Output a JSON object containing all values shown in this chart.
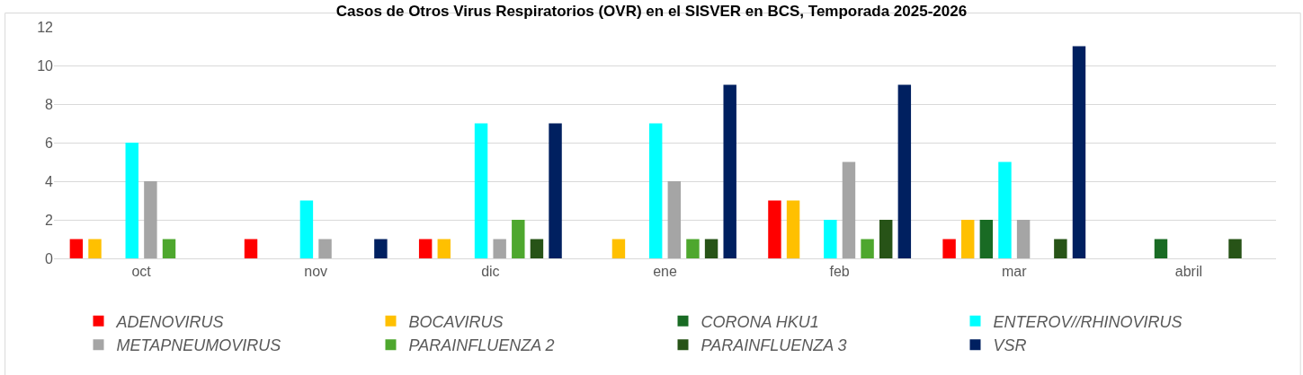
{
  "chart_data": {
    "type": "bar",
    "title": "Casos de Otros Virus Respiratorios (OVR) en el SISVER en BCS, Temporada 2025-2026",
    "categories": [
      "oct",
      "nov",
      "dic",
      "ene",
      "feb",
      "mar",
      "abril"
    ],
    "series": [
      {
        "name": "ADENOVIRUS",
        "color": "#ff0000",
        "values": [
          1,
          1,
          1,
          null,
          3,
          1,
          null
        ]
      },
      {
        "name": "BOCAVIRUS",
        "color": "#ffc000",
        "values": [
          1,
          null,
          1,
          1,
          3,
          2,
          null
        ]
      },
      {
        "name": "CORONA HKU1",
        "color": "#196b24",
        "values": [
          null,
          null,
          null,
          null,
          null,
          2,
          1
        ]
      },
      {
        "name": "ENTEROV//RHINOVIRUS",
        "color": "#00ffff",
        "values": [
          6,
          3,
          7,
          7,
          2,
          5,
          null
        ]
      },
      {
        "name": "METAPNEUMOVIRUS",
        "color": "#a5a5a5",
        "values": [
          4,
          1,
          1,
          4,
          5,
          2,
          null
        ]
      },
      {
        "name": "PARAINFLUENZA 2",
        "color": "#4ea72e",
        "values": [
          1,
          null,
          2,
          1,
          1,
          null,
          null
        ]
      },
      {
        "name": "PARAINFLUENZA 3",
        "color": "#275317",
        "values": [
          null,
          null,
          1,
          1,
          2,
          1,
          1
        ]
      },
      {
        "name": "VSR",
        "color": "#002060",
        "values": [
          null,
          1,
          7,
          9,
          9,
          11,
          null
        ]
      }
    ],
    "ylim": [
      0,
      12
    ],
    "yticks": [
      0,
      2,
      4,
      6,
      8,
      10,
      12
    ],
    "grid": "y",
    "legend": "bottom"
  }
}
